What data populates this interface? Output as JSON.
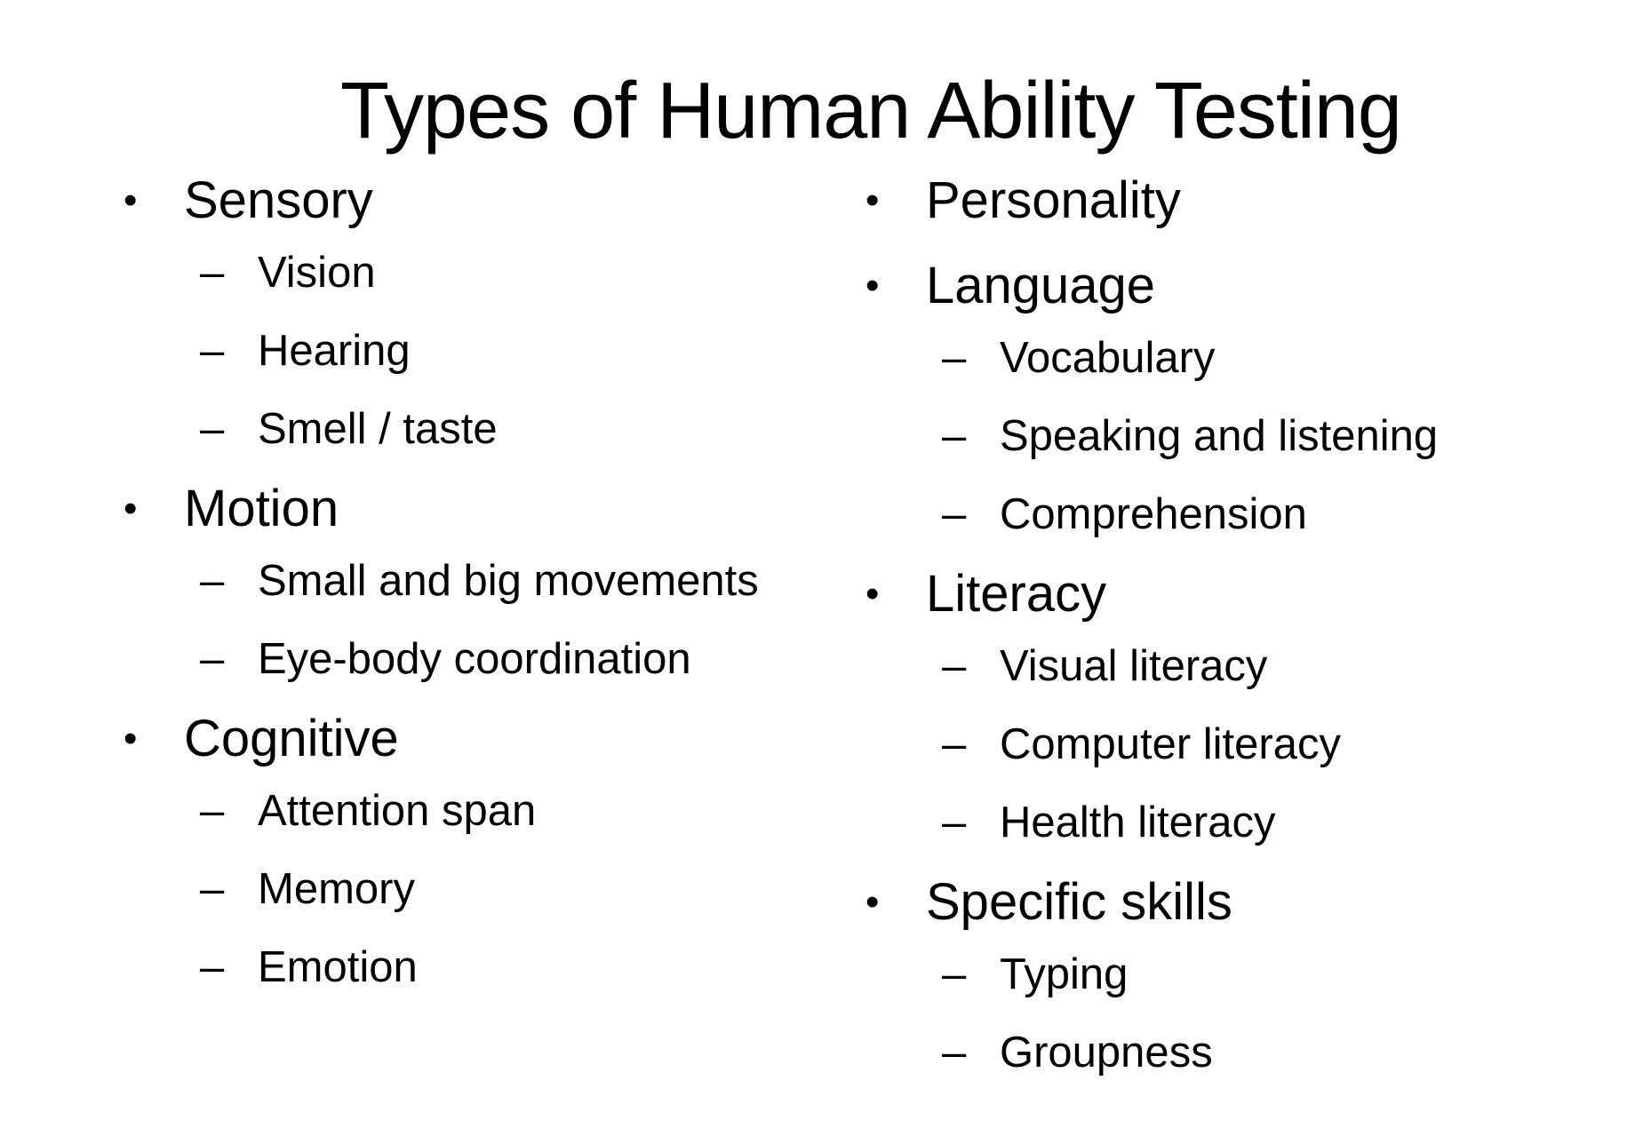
{
  "slide": {
    "title": "Types of Human Ability Testing",
    "bullet_glyph": "•",
    "dash_glyph": "–",
    "left_column": [
      {
        "label": "Sensory",
        "subitems": [
          "Vision",
          "Hearing",
          "Smell / taste"
        ]
      },
      {
        "label": "Motion",
        "subitems": [
          "Small and big movements",
          "Eye-body coordination"
        ]
      },
      {
        "label": "Cognitive",
        "subitems": [
          "Attention span",
          "Memory",
          "Emotion"
        ]
      }
    ],
    "right_column": [
      {
        "label": "Personality",
        "subitems": []
      },
      {
        "label": "Language",
        "subitems": [
          "Vocabulary",
          "Speaking and listening",
          "Comprehension"
        ]
      },
      {
        "label": "Literacy",
        "subitems": [
          "Visual literacy",
          "Computer literacy",
          "Health literacy"
        ]
      },
      {
        "label": "Specific skills",
        "subitems": [
          "Typing",
          "Groupness"
        ]
      }
    ]
  }
}
